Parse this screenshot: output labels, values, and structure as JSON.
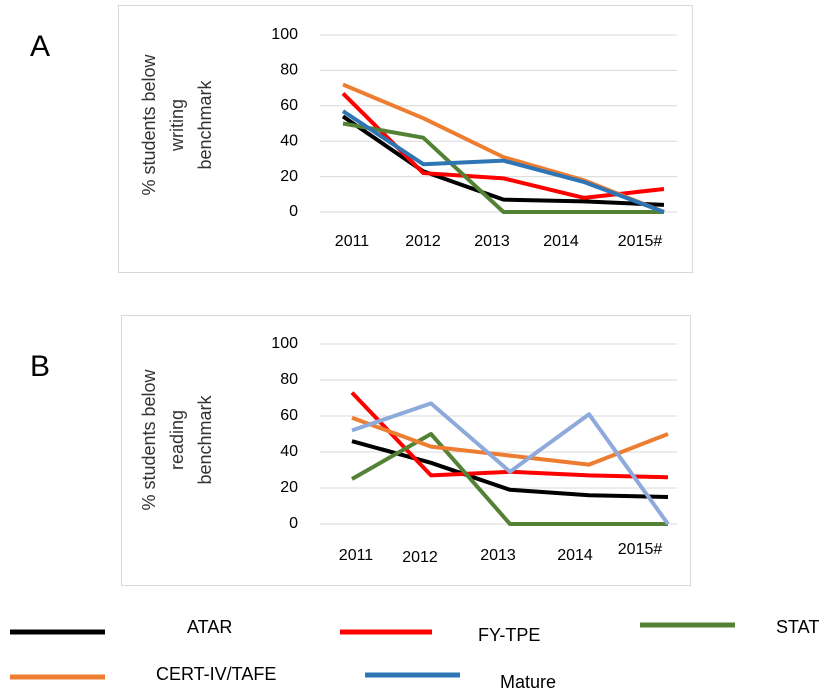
{
  "chart_data": [
    {
      "type": "line",
      "panel": "A",
      "ylabel": [
        "% students below",
        "writing",
        "benchmark"
      ],
      "categories": [
        "2011",
        "2012",
        "2013",
        "2014",
        "2015#"
      ],
      "ylim": [
        0,
        100
      ],
      "yticks": [
        0,
        20,
        40,
        60,
        80,
        100
      ],
      "grid": true,
      "series": [
        {
          "name": "ATAR",
          "color": "#000000",
          "values": [
            54,
            23,
            7,
            6,
            4
          ]
        },
        {
          "name": "FY-TPE",
          "color": "#ff0000",
          "values": [
            67,
            22,
            19,
            8,
            13
          ]
        },
        {
          "name": "STAT",
          "color": "#548235",
          "values": [
            50,
            42,
            0,
            0,
            0
          ]
        },
        {
          "name": "CERT-IV/TAFE",
          "color": "#ed7d31",
          "values": [
            72,
            53,
            31,
            18,
            0
          ]
        },
        {
          "name": "Mature",
          "color": "#2e75b6",
          "values": [
            57,
            27,
            29,
            17,
            0
          ]
        }
      ]
    },
    {
      "type": "line",
      "panel": "B",
      "ylabel": [
        "% students below",
        "reading",
        "benchmark"
      ],
      "categories": [
        "2011",
        "2012",
        "2013",
        "2014",
        "2015#"
      ],
      "ylim": [
        0,
        100
      ],
      "yticks": [
        0,
        20,
        40,
        60,
        80,
        100
      ],
      "grid": true,
      "series": [
        {
          "color": "#000000",
          "values": [
            46,
            34,
            19,
            16,
            15
          ]
        },
        {
          "color": "#ff0000",
          "values": [
            73,
            27,
            29,
            27,
            26
          ]
        },
        {
          "color": "#548235",
          "values": [
            25,
            50,
            0,
            0,
            0
          ]
        },
        {
          "color": "#ed7d31",
          "values": [
            59,
            43,
            38,
            33,
            50
          ]
        },
        {
          "color": "#8eaadb",
          "values": [
            52,
            67,
            29,
            61,
            0
          ]
        }
      ]
    }
  ]
}
